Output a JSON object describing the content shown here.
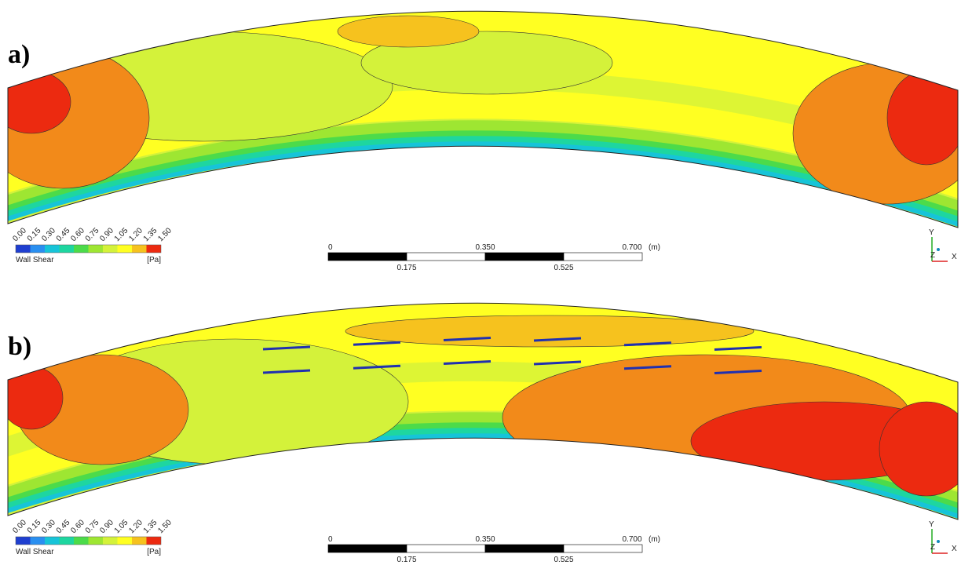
{
  "legend_colors": [
    "#1f3fd0",
    "#2a8ff0",
    "#17c4d8",
    "#1ed6a0",
    "#4cdb4a",
    "#9ee632",
    "#d4f23a",
    "#ffff22",
    "#f6c21e",
    "#f28a1a",
    "#ec2a10"
  ],
  "panels": [
    {
      "label": "a)",
      "legend": {
        "ticks": [
          "0.00",
          "0.15",
          "0.30",
          "0.45",
          "0.60",
          "0.75",
          "0.90",
          "1.05",
          "1.20",
          "1.35",
          "1.50"
        ],
        "title": "Wall Shear",
        "unit": "[Pa]"
      },
      "scale_bar": {
        "top": [
          "0",
          "0.350",
          "0.700"
        ],
        "unit": "(m)",
        "bottom": [
          "0.175",
          "0.525"
        ]
      },
      "axes": {
        "y": "Y",
        "z": "Z",
        "x": "X"
      }
    },
    {
      "label": "b)",
      "legend": {
        "ticks": [
          "0.00",
          "0.15",
          "0.30",
          "0.45",
          "0.60",
          "0.75",
          "0.90",
          "1.05",
          "1.20",
          "1.35",
          "1.50"
        ],
        "title": "Wall Shear",
        "unit": "[Pa]"
      },
      "scale_bar": {
        "top": [
          "0",
          "0.350",
          "0.700"
        ],
        "unit": "(m)",
        "bottom": [
          "0.175",
          "0.525"
        ]
      },
      "axes": {
        "y": "Y",
        "z": "Z",
        "x": "X"
      }
    }
  ]
}
